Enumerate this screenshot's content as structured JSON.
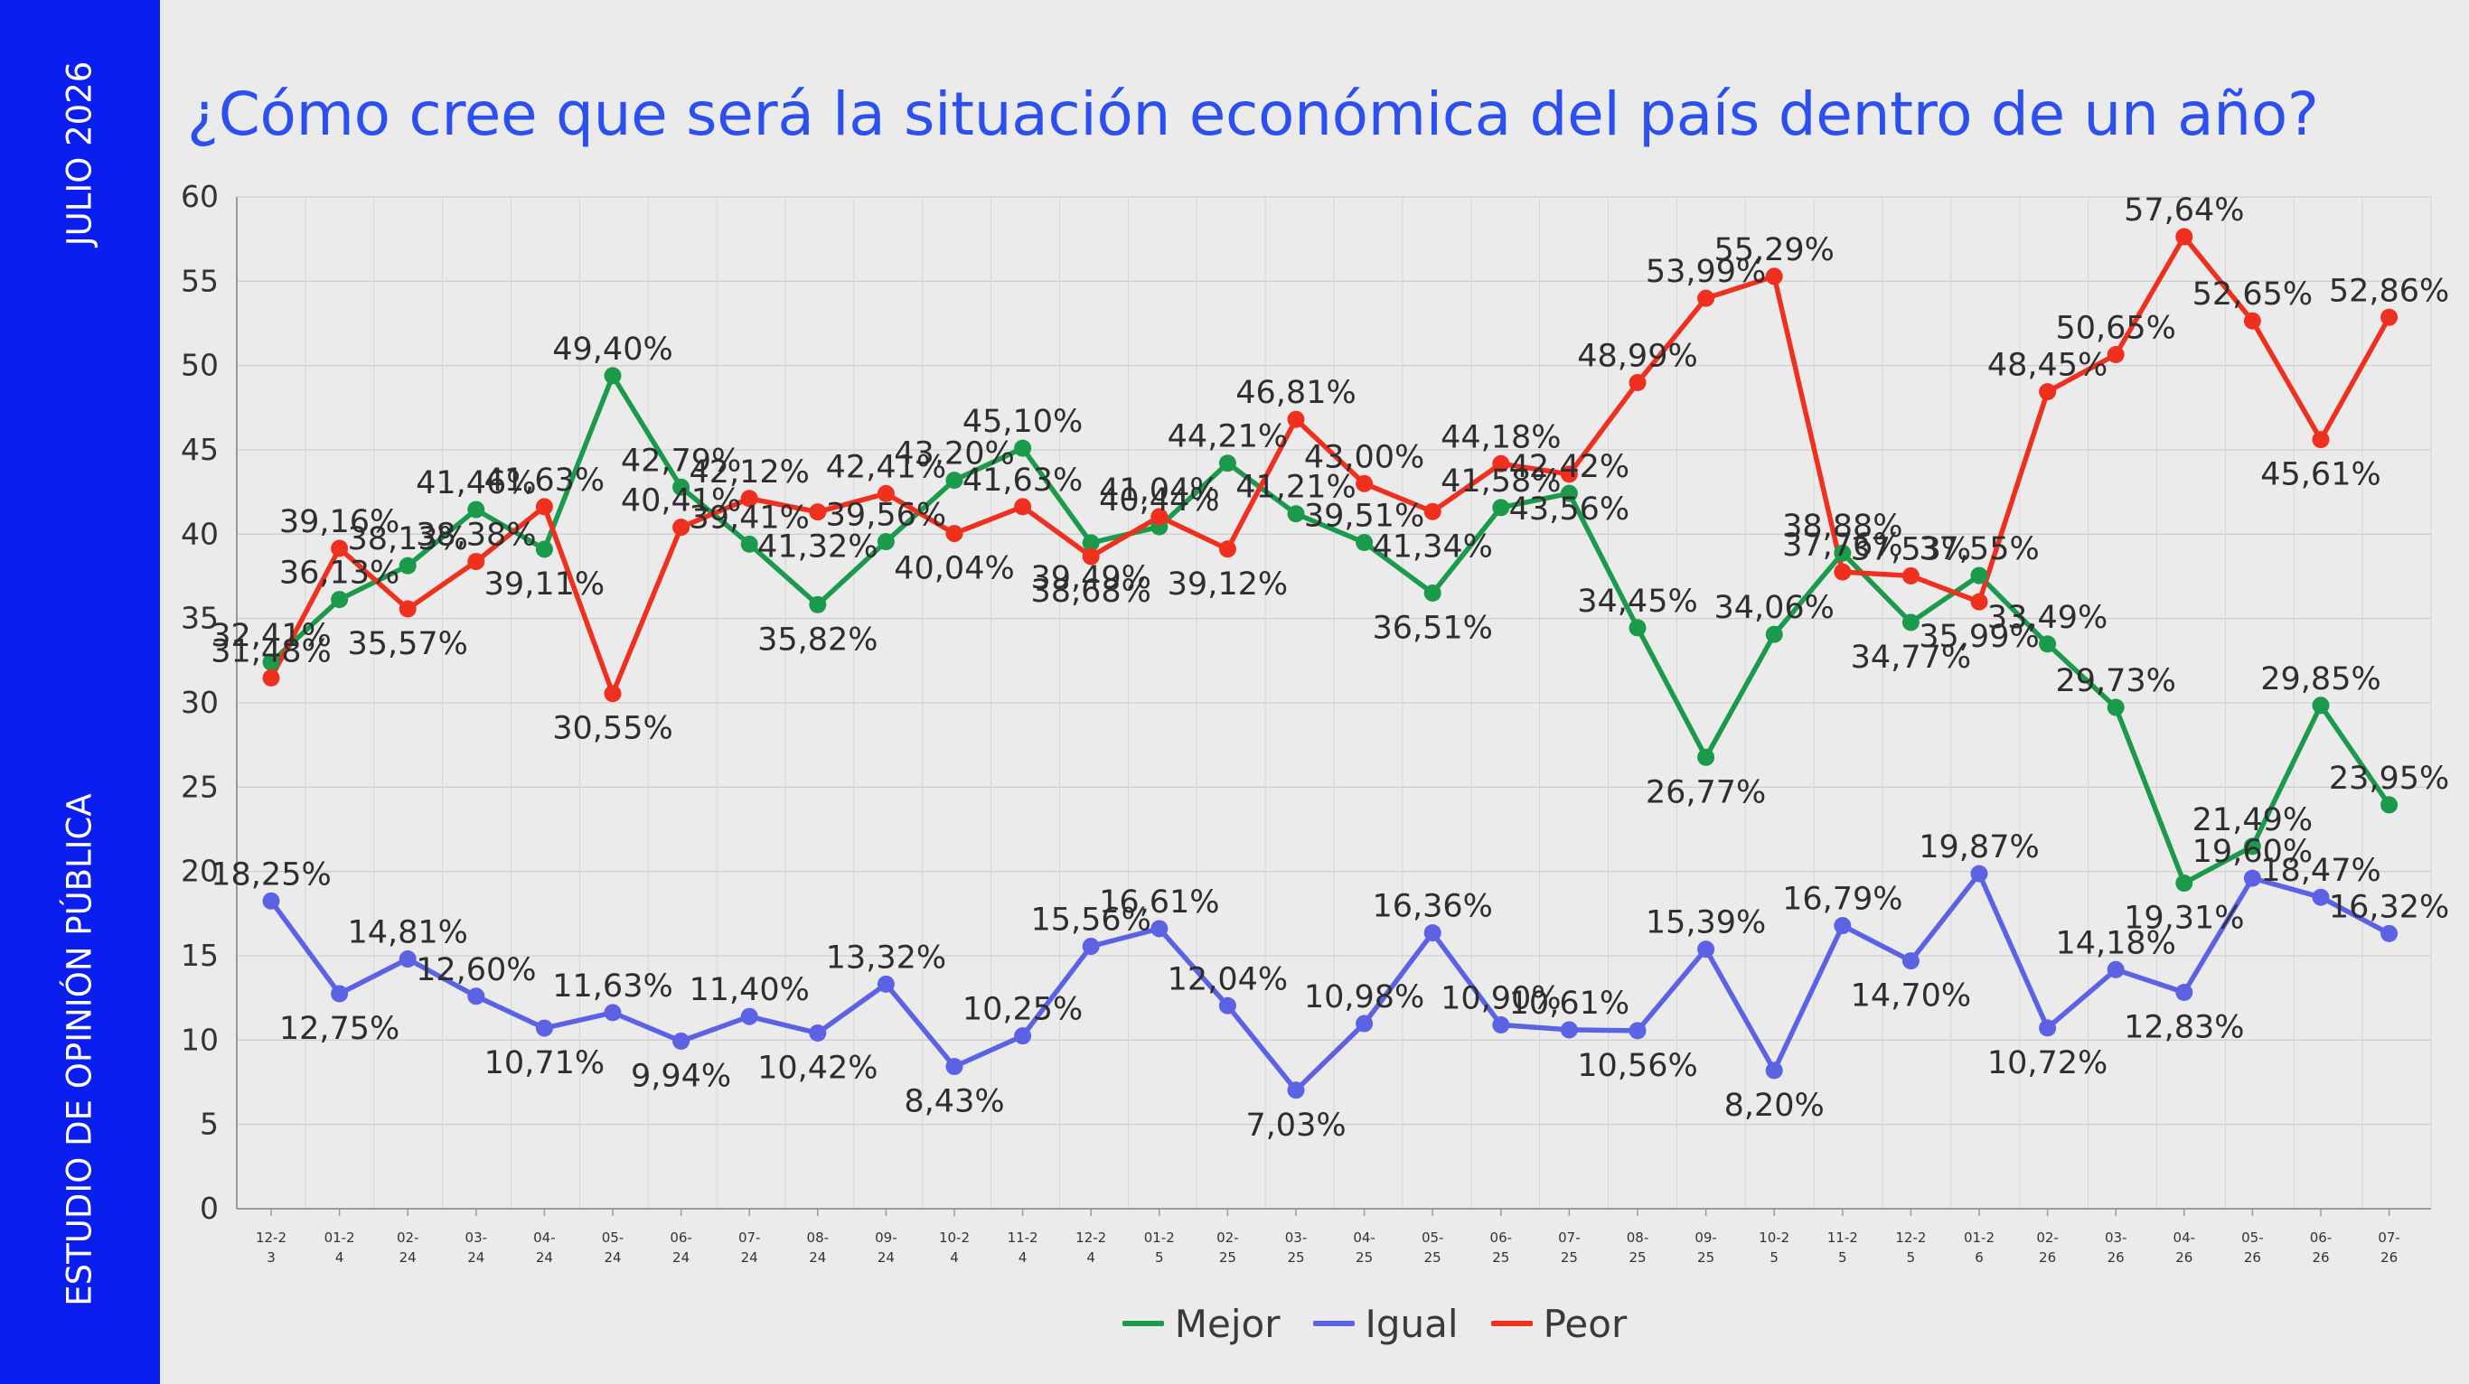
{
  "sidebar": {
    "date": "JULIO 2026",
    "org": "ESTUDIO DE OPINIÓN PÚBLICA"
  },
  "colors": {
    "sidebar_bg": "#0a1ef0",
    "title": "#2c4ff0",
    "mejor": "#1b9a4b",
    "igual": "#5b62e4",
    "peor": "#f0301e"
  },
  "chart_data": {
    "type": "line",
    "title": "¿Cómo cree que será la situación económica del país dentro de un año?",
    "xlabel": "",
    "ylabel": "",
    "ylim": [
      0,
      60
    ],
    "yticks": [
      0,
      5,
      10,
      15,
      20,
      25,
      30,
      35,
      40,
      45,
      50,
      55,
      60
    ],
    "grid": true,
    "legend_position": "bottom",
    "categories": [
      [
        "12-2",
        "3"
      ],
      [
        "01-2",
        "4"
      ],
      [
        "02-",
        "24"
      ],
      [
        "03-",
        "24"
      ],
      [
        "04-",
        "24"
      ],
      [
        "05-",
        "24"
      ],
      [
        "06-",
        "24"
      ],
      [
        "07-",
        "24"
      ],
      [
        "08-",
        "24"
      ],
      [
        "09-",
        "24"
      ],
      [
        "10-2",
        "4"
      ],
      [
        "11-2",
        "4"
      ],
      [
        "12-2",
        "4"
      ],
      [
        "01-2",
        "5"
      ],
      [
        "02-",
        "25"
      ],
      [
        "03-",
        "25"
      ],
      [
        "04-",
        "25"
      ],
      [
        "05-",
        "25"
      ],
      [
        "06-",
        "25"
      ],
      [
        "07-",
        "25"
      ],
      [
        "08-",
        "25"
      ],
      [
        "09-",
        "25"
      ],
      [
        "10-2",
        "5"
      ],
      [
        "11-2",
        "5"
      ],
      [
        "12-2",
        "5"
      ],
      [
        "01-2",
        "6"
      ],
      [
        "02-",
        "26"
      ],
      [
        "03-",
        "26"
      ],
      [
        "04-",
        "26"
      ],
      [
        "05-",
        "26"
      ],
      [
        "06-",
        "26"
      ],
      [
        "07-",
        "26"
      ]
    ],
    "series": [
      {
        "name": "Mejor",
        "values": [
          32.41,
          36.13,
          38.13,
          41.46,
          39.11,
          49.4,
          42.79,
          39.41,
          35.82,
          39.56,
          43.2,
          45.1,
          39.49,
          40.44,
          44.21,
          41.21,
          39.51,
          36.51,
          41.58,
          42.42,
          34.45,
          26.77,
          34.06,
          38.88,
          34.77,
          37.55,
          33.49,
          29.73,
          19.31,
          21.49,
          29.85,
          23.95
        ],
        "labels": [
          "32,41%",
          "36,13%",
          "38,13%",
          "41,46%",
          "39,11%",
          "49,40%",
          "42,79%",
          "39,41%",
          "35,82%",
          "39,56%",
          "43,20%",
          "45,10%",
          "39,49%",
          "40,44%",
          "44,21%",
          "41,21%",
          "39,51%",
          "36,51%",
          "41,58%",
          "42,42%",
          "34,45%",
          "26,77%",
          "34,06%",
          "38,88%",
          "34,77%",
          "37,55%",
          "33,49%",
          "29,73%",
          "19,31%",
          "21,49%",
          "29,85%",
          "23,95%"
        ]
      },
      {
        "name": "Igual",
        "values": [
          18.25,
          12.75,
          14.81,
          12.6,
          10.71,
          11.63,
          9.94,
          11.4,
          10.42,
          13.32,
          8.43,
          10.25,
          15.56,
          16.61,
          12.04,
          7.03,
          10.98,
          16.36,
          10.9,
          10.61,
          10.56,
          15.39,
          8.2,
          16.79,
          14.7,
          19.87,
          10.72,
          14.18,
          12.83,
          19.6,
          18.47,
          16.32
        ],
        "labels": [
          "18,25%",
          "12,75%",
          "14,81%",
          "12,60%",
          "10,71%",
          "11,63%",
          "9,94%",
          "11,40%",
          "10,42%",
          "13,32%",
          "8,43%",
          "10,25%",
          "15,56%",
          "16,61%",
          "12,04%",
          "7,03%",
          "10,98%",
          "16,36%",
          "10,90%",
          "10,61%",
          "10,56%",
          "15,39%",
          "8,20%",
          "16,79%",
          "14,70%",
          "19,87%",
          "10,72%",
          "14,18%",
          "12,83%",
          "19,60%",
          "18,47%",
          "16,32%"
        ]
      },
      {
        "name": "Peor",
        "values": [
          31.48,
          39.16,
          35.57,
          38.38,
          41.63,
          30.55,
          40.41,
          42.12,
          41.32,
          42.41,
          40.04,
          41.63,
          38.68,
          41.04,
          39.12,
          46.81,
          43.0,
          41.34,
          44.18,
          43.56,
          48.99,
          53.99,
          55.29,
          37.76,
          37.53,
          35.99,
          48.45,
          50.65,
          57.64,
          52.65,
          45.61,
          52.86
        ],
        "labels": [
          "31,48%",
          "39,16%",
          "35,57%",
          "38,38%",
          "41,63%",
          "30,55%",
          "40,41%",
          "42,12%",
          "41,32%",
          "42,41%",
          "40,04%",
          "41,63%",
          "38,68%",
          "41,04%",
          "39,12%",
          "46,81%",
          "43,00%",
          "41,34%",
          "44,18%",
          "43,56%",
          "48,99%",
          "53,99%",
          "55,29%",
          "37,76%",
          "37,53%",
          "35,99%",
          "48,45%",
          "50,65%",
          "57,64%",
          "52,65%",
          "45,61%",
          "52,86%"
        ]
      }
    ]
  }
}
